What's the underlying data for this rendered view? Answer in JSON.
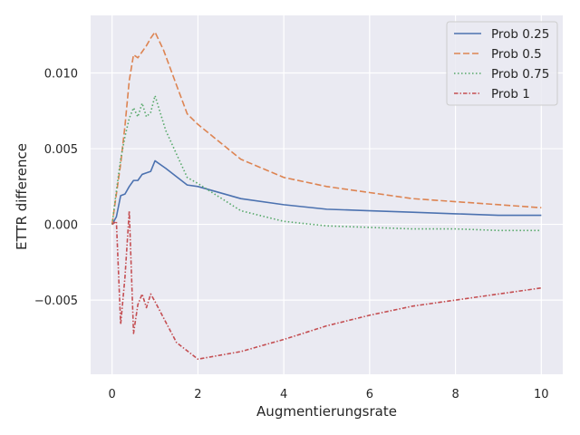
{
  "chart_data": {
    "type": "line",
    "xlabel": "Augmentierungsrate",
    "ylabel": "ETTR difference",
    "xlim": [
      -0.5,
      10.5
    ],
    "ylim": [
      -0.0099,
      0.0138
    ],
    "xticks": [
      0,
      2,
      4,
      6,
      8,
      10
    ],
    "xtick_labels": [
      "0",
      "2",
      "4",
      "6",
      "8",
      "10"
    ],
    "yticks": [
      -0.005,
      0.0,
      0.005,
      0.01
    ],
    "ytick_labels": [
      "−0.005",
      "0.000",
      "0.005",
      "0.010"
    ],
    "grid": true,
    "legend_position": "top-right",
    "series": [
      {
        "name": "Prob 0.25",
        "color": "#4c72b0",
        "dash": "solid",
        "x": [
          0,
          0.1,
          0.2,
          0.3,
          0.4,
          0.5,
          0.6,
          0.7,
          0.8,
          0.9,
          1.0,
          1.25,
          1.75,
          2,
          3,
          4,
          5,
          6,
          7,
          8,
          9,
          10
        ],
        "y": [
          0.0,
          0.0005,
          0.0019,
          0.002,
          0.0025,
          0.0029,
          0.0029,
          0.0033,
          0.0034,
          0.0035,
          0.0042,
          0.0037,
          0.0026,
          0.0025,
          0.0017,
          0.0013,
          0.001,
          0.0009,
          0.0008,
          0.0007,
          0.0006,
          0.0006
        ]
      },
      {
        "name": "Prob 0.5",
        "color": "#dd8452",
        "dash": "dashed",
        "x": [
          0,
          0.1,
          0.2,
          0.3,
          0.4,
          0.5,
          0.6,
          0.7,
          0.8,
          0.9,
          1.0,
          1.2,
          1.5,
          1.75,
          2,
          3,
          4,
          5,
          6,
          7,
          8,
          9,
          10
        ],
        "y": [
          0.0,
          0.002,
          0.004,
          0.0065,
          0.0095,
          0.0112,
          0.011,
          0.0114,
          0.0118,
          0.0123,
          0.0127,
          0.0115,
          0.0092,
          0.0073,
          0.0066,
          0.0043,
          0.0031,
          0.0025,
          0.0021,
          0.0017,
          0.0015,
          0.0013,
          0.0011
        ]
      },
      {
        "name": "Prob 0.75",
        "color": "#55a868",
        "dash": "dotted",
        "x": [
          0,
          0.1,
          0.2,
          0.3,
          0.4,
          0.5,
          0.6,
          0.7,
          0.8,
          0.9,
          1.0,
          1.25,
          1.75,
          2,
          3,
          4,
          5,
          6,
          7,
          8,
          9,
          10
        ],
        "y": [
          0.0,
          0.0022,
          0.0043,
          0.0058,
          0.007,
          0.0077,
          0.0071,
          0.008,
          0.0071,
          0.0074,
          0.0085,
          0.0062,
          0.0031,
          0.0027,
          0.0009,
          0.0002,
          -0.0001,
          -0.0002,
          -0.0003,
          -0.0003,
          -0.0004,
          -0.0004
        ]
      },
      {
        "name": "Prob 1",
        "color": "#c44e52",
        "dash": "dashdot",
        "x": [
          0,
          0.1,
          0.2,
          0.3,
          0.4,
          0.5,
          0.6,
          0.7,
          0.8,
          0.9,
          1.0,
          1.5,
          2,
          3,
          4,
          5,
          6,
          7,
          8,
          9,
          10
        ],
        "y": [
          0.0,
          0.0002,
          -0.0066,
          -0.0035,
          0.0009,
          -0.0072,
          -0.0053,
          -0.0046,
          -0.0055,
          -0.0046,
          -0.0051,
          -0.0078,
          -0.0089,
          -0.0084,
          -0.0076,
          -0.0067,
          -0.006,
          -0.0054,
          -0.005,
          -0.0046,
          -0.0042
        ]
      }
    ]
  }
}
